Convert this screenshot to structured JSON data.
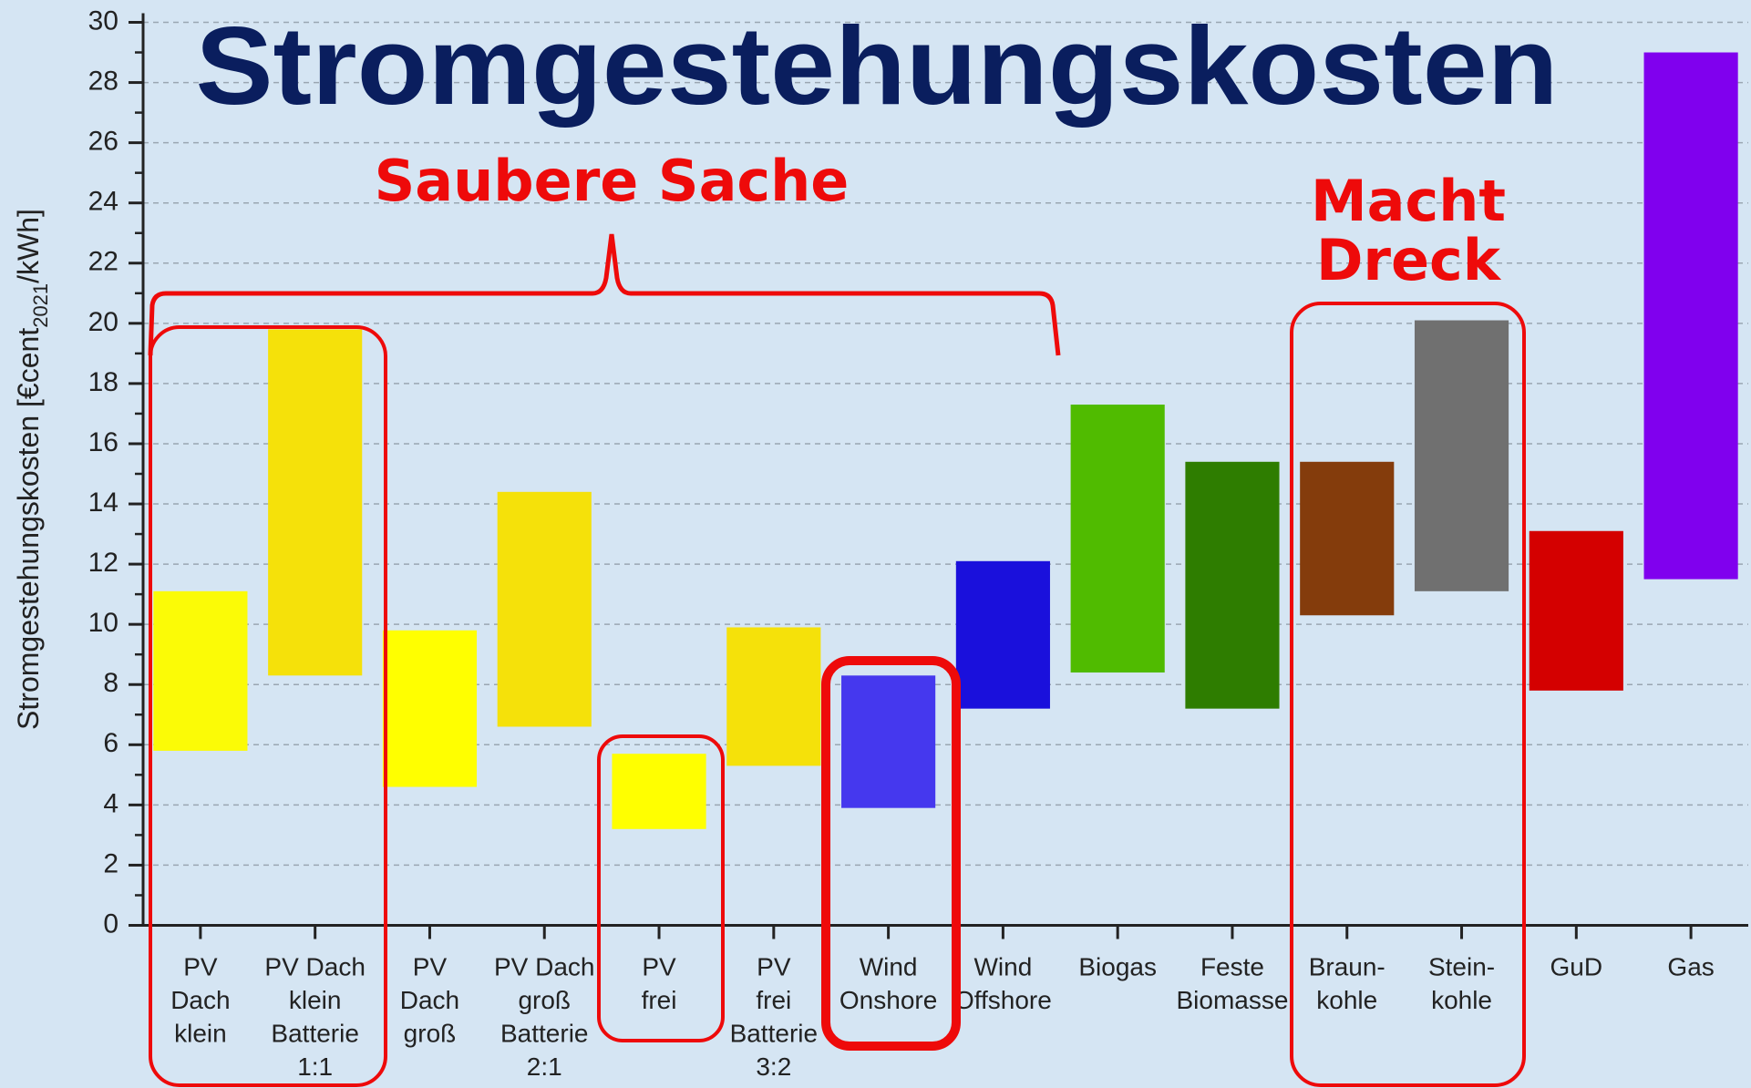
{
  "chart_data": {
    "type": "range_bar",
    "title": "Stromgestehungskosten",
    "y_label": [
      "Stromgestehungskosten [€cent",
      "2021",
      "/kWh]"
    ],
    "annotations": {
      "clean": "Saubere Sache",
      "dirty": [
        "Macht",
        "Dreck"
      ]
    },
    "categories": [
      [
        "PV",
        "Dach",
        "klein"
      ],
      [
        "PV Dach",
        "klein",
        "Batterie",
        "1:1"
      ],
      [
        "PV",
        "Dach",
        "groß"
      ],
      [
        "PV Dach",
        "groß",
        "Batterie",
        "2:1"
      ],
      [
        "PV",
        "frei"
      ],
      [
        "PV",
        "frei",
        "Batterie",
        "3:2"
      ],
      [
        "Wind",
        "Onshore"
      ],
      [
        "Wind",
        "Offshore"
      ],
      [
        "Biogas"
      ],
      [
        "Feste",
        "Biomasse"
      ],
      [
        "Braun-",
        "kohle"
      ],
      [
        "Stein-",
        "kohle"
      ],
      [
        "GuD"
      ],
      [
        "Gas"
      ]
    ],
    "low": [
      5.8,
      8.3,
      4.6,
      6.6,
      3.2,
      5.3,
      3.9,
      7.2,
      8.4,
      7.2,
      10.3,
      11.1,
      7.8,
      11.5
    ],
    "high": [
      11.1,
      19.8,
      9.8,
      14.4,
      5.7,
      9.9,
      8.3,
      12.1,
      17.3,
      15.4,
      15.4,
      20.1,
      13.1,
      29.0
    ],
    "colors": [
      "#fbfb06",
      "#f5e10a",
      "#ffff00",
      "#f5e10a",
      "#ffff00",
      "#f5e10a",
      "#4538ee",
      "#1a10dc",
      "#50bb00",
      "#2e7d00",
      "#843c0c",
      "#707070",
      "#d40000",
      "#8000ee"
    ],
    "ylim": [
      0,
      30
    ],
    "yticks": [
      0,
      2,
      4,
      6,
      8,
      10,
      12,
      14,
      16,
      18,
      20,
      22,
      24,
      26,
      28,
      30
    ],
    "grid": true
  }
}
